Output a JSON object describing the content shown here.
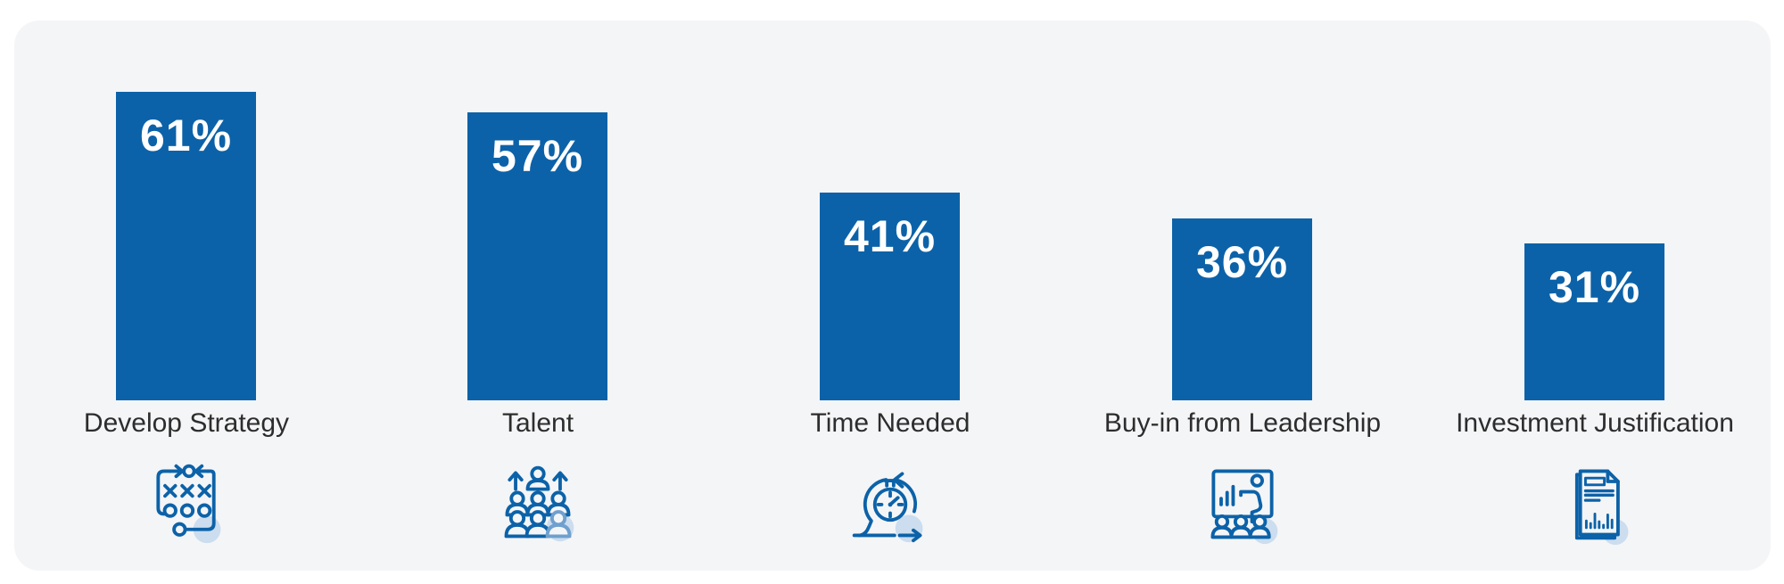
{
  "chart_data": {
    "type": "bar",
    "categories": [
      "Develop Strategy",
      "Talent",
      "Time Needed",
      "Buy-in from Leadership",
      "Investment Justification"
    ],
    "values": [
      61,
      57,
      41,
      36,
      31
    ],
    "value_labels": [
      "61%",
      "57%",
      "41%",
      "36%",
      "31%"
    ],
    "icons": [
      "strategy-icon",
      "talent-icon",
      "time-icon",
      "leadership-icon",
      "investment-icon"
    ],
    "title": "",
    "xlabel": "",
    "ylabel": "",
    "ylim": [
      0,
      75
    ],
    "grid": false,
    "legend": "none",
    "value_label_position": "inside-top",
    "colors": {
      "bar": "#0C62A8",
      "value_label": "#FFFFFF",
      "category_label": "#2D2D2D",
      "panel_bg": "#F4F5F7",
      "page_bg": "#FFFFFF",
      "icon_stroke": "#0C62A8",
      "icon_stroke_light": "#6FA0CE",
      "icon_halo": "#CBDDEE"
    }
  }
}
